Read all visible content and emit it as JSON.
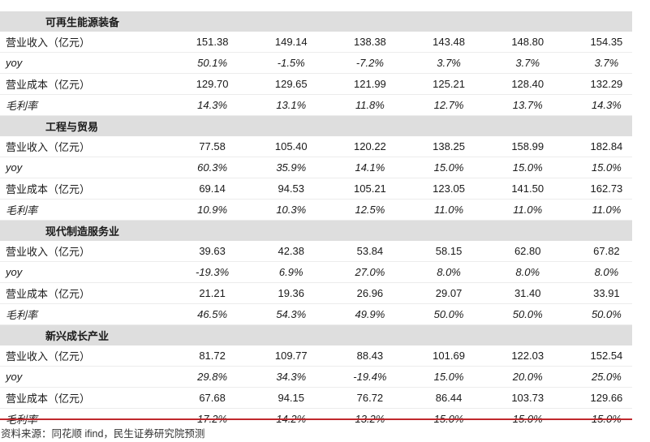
{
  "accent_color": "#c0282d",
  "section_bg": "#dedede",
  "sections": [
    {
      "name": "可再生能源装备",
      "rows": [
        {
          "label": "营业收入（亿元）",
          "italic": false,
          "values": [
            "151.38",
            "149.14",
            "138.38",
            "143.48",
            "148.80",
            "154.35"
          ]
        },
        {
          "label": "yoy",
          "italic": true,
          "values": [
            "50.1%",
            "-1.5%",
            "-7.2%",
            "3.7%",
            "3.7%",
            "3.7%"
          ]
        },
        {
          "label": "营业成本（亿元）",
          "italic": false,
          "values": [
            "129.70",
            "129.65",
            "121.99",
            "125.21",
            "128.40",
            "132.29"
          ]
        },
        {
          "label": "毛利率",
          "italic": true,
          "values": [
            "14.3%",
            "13.1%",
            "11.8%",
            "12.7%",
            "13.7%",
            "14.3%"
          ]
        }
      ]
    },
    {
      "name": "工程与贸易",
      "rows": [
        {
          "label": "营业收入（亿元）",
          "italic": false,
          "values": [
            "77.58",
            "105.40",
            "120.22",
            "138.25",
            "158.99",
            "182.84"
          ]
        },
        {
          "label": "yoy",
          "italic": true,
          "values": [
            "60.3%",
            "35.9%",
            "14.1%",
            "15.0%",
            "15.0%",
            "15.0%"
          ]
        },
        {
          "label": "营业成本（亿元）",
          "italic": false,
          "values": [
            "69.14",
            "94.53",
            "105.21",
            "123.05",
            "141.50",
            "162.73"
          ]
        },
        {
          "label": "毛利率",
          "italic": true,
          "values": [
            "10.9%",
            "10.3%",
            "12.5%",
            "11.0%",
            "11.0%",
            "11.0%"
          ]
        }
      ]
    },
    {
      "name": "现代制造服务业",
      "rows": [
        {
          "label": "营业收入（亿元）",
          "italic": false,
          "values": [
            "39.63",
            "42.38",
            "53.84",
            "58.15",
            "62.80",
            "67.82"
          ]
        },
        {
          "label": "yoy",
          "italic": true,
          "values": [
            "-19.3%",
            "6.9%",
            "27.0%",
            "8.0%",
            "8.0%",
            "8.0%"
          ]
        },
        {
          "label": "营业成本（亿元）",
          "italic": false,
          "values": [
            "21.21",
            "19.36",
            "26.96",
            "29.07",
            "31.40",
            "33.91"
          ]
        },
        {
          "label": "毛利率",
          "italic": true,
          "values": [
            "46.5%",
            "54.3%",
            "49.9%",
            "50.0%",
            "50.0%",
            "50.0%"
          ]
        }
      ]
    },
    {
      "name": "新兴成长产业",
      "rows": [
        {
          "label": "营业收入（亿元）",
          "italic": false,
          "values": [
            "81.72",
            "109.77",
            "88.43",
            "101.69",
            "122.03",
            "152.54"
          ]
        },
        {
          "label": "yoy",
          "italic": true,
          "values": [
            "29.8%",
            "34.3%",
            "-19.4%",
            "15.0%",
            "20.0%",
            "25.0%"
          ]
        },
        {
          "label": "营业成本（亿元）",
          "italic": false,
          "values": [
            "67.68",
            "94.15",
            "76.72",
            "86.44",
            "103.73",
            "129.66"
          ]
        },
        {
          "label": "毛利率",
          "italic": true,
          "values": [
            "17.2%",
            "14.2%",
            "13.2%",
            "15.0%",
            "15.0%",
            "15.0%"
          ]
        }
      ]
    }
  ],
  "source_note": "资料来源：同花顺 ifind，民生证券研究院预测"
}
